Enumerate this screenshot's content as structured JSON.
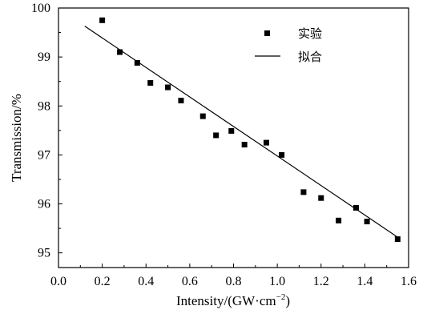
{
  "chart_data": {
    "type": "scatter",
    "xlabel_main": "Intensity/(GW·cm",
    "xlabel_sup": "−2",
    "xlabel_close": ")",
    "ylabel": "Transmission/%",
    "xlim": [
      0.0,
      1.6
    ],
    "ylim": [
      94.7,
      100.0
    ],
    "x_ticks": [
      "0.0",
      "0.2",
      "0.4",
      "0.6",
      "0.8",
      "1.0",
      "1.2",
      "1.4",
      "1.6"
    ],
    "y_ticks": [
      "95",
      "96",
      "97",
      "98",
      "99",
      "100"
    ],
    "grid": false,
    "legend_position": "top-right",
    "series": [
      {
        "name": "实验",
        "kind": "markers",
        "marker": "square",
        "color": "#000000",
        "points": [
          [
            0.2,
            99.75
          ],
          [
            0.28,
            99.1
          ],
          [
            0.36,
            98.88
          ],
          [
            0.42,
            98.47
          ],
          [
            0.5,
            98.38
          ],
          [
            0.56,
            98.11
          ],
          [
            0.66,
            97.79
          ],
          [
            0.72,
            97.4
          ],
          [
            0.79,
            97.49
          ],
          [
            0.85,
            97.21
          ],
          [
            0.95,
            97.25
          ],
          [
            1.02,
            97.0
          ],
          [
            1.12,
            96.24
          ],
          [
            1.2,
            96.12
          ],
          [
            1.28,
            95.66
          ],
          [
            1.36,
            95.92
          ],
          [
            1.41,
            95.64
          ],
          [
            1.55,
            95.28
          ]
        ]
      },
      {
        "name": "拟合",
        "kind": "line",
        "color": "#000000",
        "points": [
          [
            0.12,
            99.63
          ],
          [
            1.55,
            95.32
          ]
        ]
      }
    ]
  }
}
